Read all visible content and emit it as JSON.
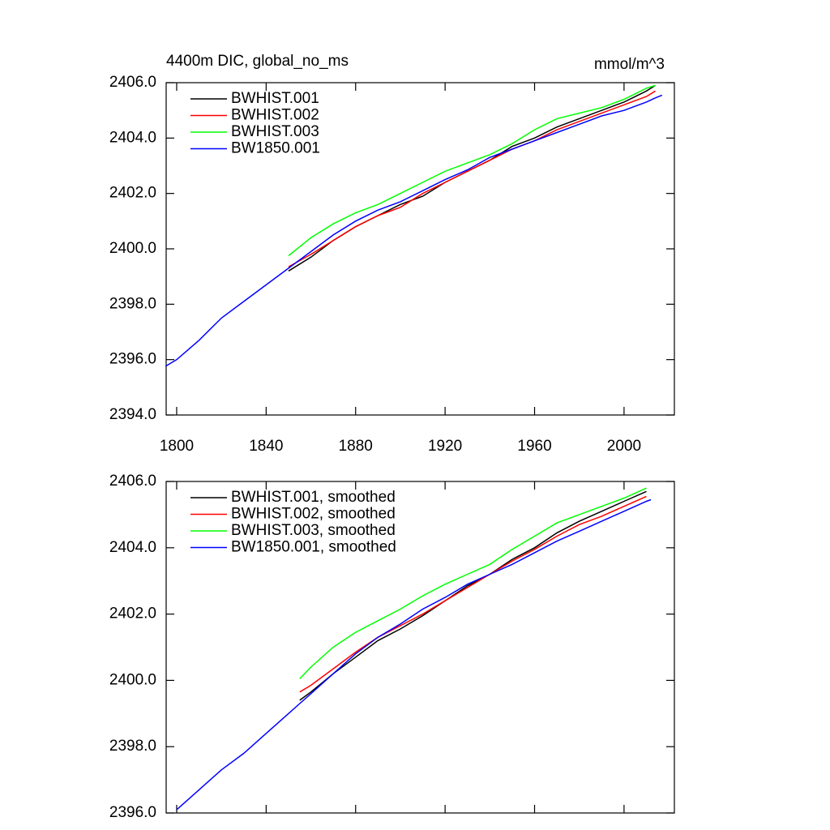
{
  "chart_data": [
    {
      "type": "line",
      "title": "4400m DIC, global_no_ms",
      "units": "mmol/m^3",
      "x": [
        1795,
        1800,
        1810,
        1820,
        1830,
        1840,
        1850,
        1860,
        1870,
        1880,
        1890,
        1900,
        1910,
        1920,
        1930,
        1940,
        1950,
        1960,
        1970,
        1980,
        1990,
        2000,
        2010,
        2014,
        2017
      ],
      "series": [
        {
          "name": "BWHIST.001",
          "color": "#000000",
          "values": [
            null,
            null,
            null,
            null,
            null,
            null,
            2399.2,
            2399.7,
            2400.3,
            2400.8,
            2401.2,
            2401.6,
            2401.9,
            2402.4,
            2402.8,
            2403.2,
            2403.7,
            2404.0,
            2404.4,
            2404.7,
            2405.0,
            2405.3,
            2405.7,
            2405.9,
            null
          ]
        },
        {
          "name": "BWHIST.002",
          "color": "#ff0000",
          "values": [
            null,
            null,
            null,
            null,
            null,
            null,
            2399.35,
            2399.8,
            2400.3,
            2400.8,
            2401.2,
            2401.5,
            2402.0,
            2402.4,
            2402.8,
            2403.2,
            2403.6,
            2403.9,
            2404.3,
            2404.6,
            2404.9,
            2405.2,
            2405.5,
            2405.7,
            null
          ]
        },
        {
          "name": "BWHIST.003",
          "color": "#00ff00",
          "values": [
            null,
            null,
            null,
            null,
            null,
            null,
            2399.75,
            2400.4,
            2400.9,
            2401.3,
            2401.6,
            2402.0,
            2402.4,
            2402.8,
            2403.1,
            2403.4,
            2403.8,
            2404.3,
            2404.7,
            2404.9,
            2405.1,
            2405.4,
            2405.8,
            2405.9,
            null
          ]
        },
        {
          "name": "BW1850.001",
          "color": "#0000ff",
          "values": [
            2395.76,
            2396.0,
            2396.7,
            2397.5,
            2398.1,
            2398.7,
            2399.3,
            2399.9,
            2400.5,
            2401.0,
            2401.4,
            2401.7,
            2402.1,
            2402.5,
            2402.85,
            2403.3,
            2403.6,
            2403.9,
            2404.2,
            2404.5,
            2404.8,
            2405.0,
            2405.3,
            2405.45,
            2405.55
          ]
        }
      ],
      "xlim": [
        1795.3,
        2022.5
      ],
      "xticks": [
        1800,
        1840,
        1880,
        1920,
        1960,
        2000
      ],
      "ylim": [
        2394,
        2406
      ],
      "yticks": [
        {
          "value": 2394,
          "label": "2394.0"
        },
        {
          "value": 2396,
          "label": "2396.0"
        },
        {
          "value": 2398,
          "label": "2398.0"
        },
        {
          "value": 2400,
          "label": "2400.0"
        },
        {
          "value": 2402,
          "label": "2402.0"
        },
        {
          "value": 2404,
          "label": "2404.0"
        },
        {
          "value": 2406,
          "label": "2406.0"
        }
      ],
      "legend": "upper left"
    },
    {
      "type": "line",
      "x": [
        1800,
        1810,
        1820,
        1830,
        1840,
        1850,
        1855,
        1860,
        1870,
        1880,
        1890,
        1900,
        1910,
        1920,
        1930,
        1940,
        1950,
        1960,
        1970,
        1980,
        1990,
        2000,
        2010,
        2012
      ],
      "series": [
        {
          "name": "BWHIST.001, smoothed",
          "color": "#000000",
          "values": [
            null,
            null,
            null,
            null,
            null,
            null,
            2399.4,
            2399.65,
            2400.2,
            2400.7,
            2401.2,
            2401.55,
            2401.95,
            2402.4,
            2402.85,
            2403.2,
            2403.65,
            2404.0,
            2404.45,
            2404.8,
            2405.1,
            2405.4,
            2405.7,
            null
          ]
        },
        {
          "name": "BWHIST.002, smoothed",
          "color": "#ff0000",
          "values": [
            null,
            null,
            null,
            null,
            null,
            null,
            2399.65,
            2399.85,
            2400.35,
            2400.85,
            2401.3,
            2401.65,
            2402.0,
            2402.4,
            2402.8,
            2403.2,
            2403.6,
            2403.95,
            2404.35,
            2404.7,
            2404.95,
            2405.25,
            2405.55,
            null
          ]
        },
        {
          "name": "BWHIST.003, smoothed",
          "color": "#00ff00",
          "values": [
            null,
            null,
            null,
            null,
            null,
            null,
            2400.05,
            2400.4,
            2401.0,
            2401.45,
            2401.8,
            2402.15,
            2402.55,
            2402.9,
            2403.2,
            2403.5,
            2403.95,
            2404.35,
            2404.75,
            2405.0,
            2405.25,
            2405.5,
            2405.8,
            null
          ]
        },
        {
          "name": "BW1850.001, smoothed",
          "color": "#0000ff",
          "values": [
            2396.1,
            2396.7,
            2397.3,
            2397.8,
            2398.4,
            2399.0,
            2399.3,
            2399.6,
            2400.2,
            2400.8,
            2401.3,
            2401.7,
            2402.15,
            2402.5,
            2402.9,
            2403.2,
            2403.5,
            2403.85,
            2404.2,
            2404.5,
            2404.8,
            2405.1,
            2405.4,
            2405.45
          ]
        }
      ],
      "xlim": [
        1795.3,
        2022.5
      ],
      "xticks": [
        1800,
        1840,
        1880,
        1920,
        1960,
        2000
      ],
      "ylim": [
        2396,
        2406
      ],
      "yticks": [
        {
          "value": 2396,
          "label": "2396.0"
        },
        {
          "value": 2398,
          "label": "2398.0"
        },
        {
          "value": 2400,
          "label": "2400.0"
        },
        {
          "value": 2402,
          "label": "2402.0"
        },
        {
          "value": 2404,
          "label": "2404.0"
        },
        {
          "value": 2406,
          "label": "2406.0"
        }
      ],
      "legend": "upper left"
    }
  ]
}
